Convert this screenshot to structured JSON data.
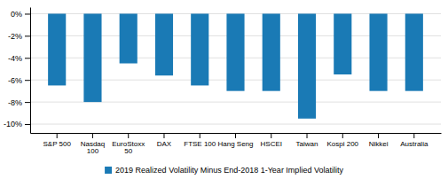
{
  "chart_data": {
    "type": "bar",
    "categories": [
      "S&P 500",
      "Nasdaq\n100",
      "EuroStoxx\n50",
      "DAX",
      "FTSE 100",
      "Hang Seng",
      "HSCEI",
      "Taiwan",
      "Kospi 200",
      "Nikkei",
      "Australia"
    ],
    "series": [
      {
        "name": "2019 Realized Volatility Minus End-2018 1-Year Implied Volatility",
        "color": "#1a7ab5",
        "values": [
          -6.5,
          -8.0,
          -4.5,
          -5.6,
          -6.5,
          -7.0,
          -7.0,
          -9.5,
          -5.5,
          -7.0,
          -7.0
        ]
      }
    ],
    "ylim": [
      -10.8,
      0.6
    ],
    "yticks": [
      {
        "value": 0,
        "label": "0%"
      },
      {
        "value": -2,
        "label": "-2%"
      },
      {
        "value": -4,
        "label": "-4%"
      },
      {
        "value": -6,
        "label": "-6%"
      },
      {
        "value": -8,
        "label": "-8%"
      },
      {
        "value": -10,
        "label": "-10%"
      }
    ],
    "grid": true,
    "legend": "bottom"
  }
}
